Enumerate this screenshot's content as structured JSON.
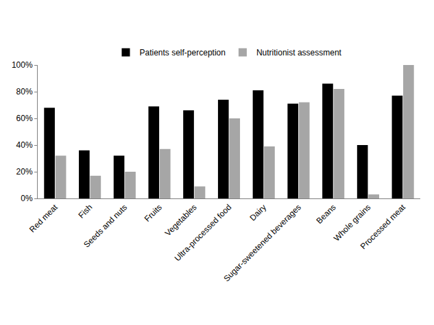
{
  "chart_data": {
    "type": "bar",
    "categories": [
      "Red meat",
      "Fish",
      "Seeds and nuts",
      "Fruits",
      "Vegetables",
      "Ultra-processed food",
      "Dairy",
      "Sugar-sweetened beverages",
      "Beans",
      "Whole grains",
      "Processed meat"
    ],
    "series": [
      {
        "name": "Patients self-perception",
        "color": "#000000",
        "values": [
          68,
          36,
          32,
          69,
          66,
          74,
          81,
          71,
          86,
          40,
          77
        ]
      },
      {
        "name": "Nutritionist assessment",
        "color": "#a6a6a6",
        "values": [
          32,
          17,
          20,
          37,
          9,
          60,
          39,
          72,
          82,
          3,
          100
        ]
      }
    ],
    "ylim": [
      0,
      100
    ],
    "yticks": [
      {
        "value": 0,
        "label": "0%"
      },
      {
        "value": 20,
        "label": "20%"
      },
      {
        "value": 40,
        "label": "40%"
      },
      {
        "value": 60,
        "label": "60%"
      },
      {
        "value": 80,
        "label": "80%"
      },
      {
        "value": 100,
        "label": "100%"
      }
    ],
    "grid": false,
    "legend": "top"
  }
}
